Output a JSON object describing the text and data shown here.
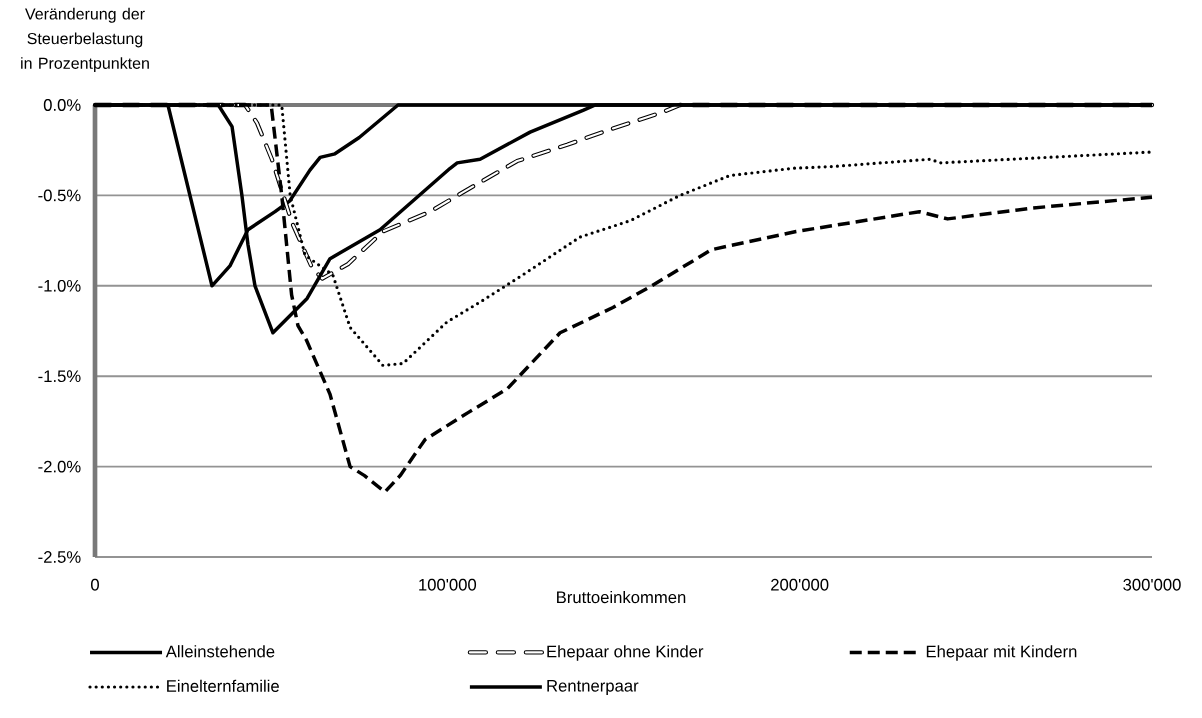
{
  "chart_data": {
    "type": "line",
    "ylabel": "Veränderung der Steuerbelastung in Prozentpunkten",
    "xlabel": "Bruttoeinkommen",
    "xlim": [
      0,
      300000
    ],
    "xticks": [
      0,
      {
        "value": 100000,
        "label": "100'000"
      },
      {
        "value": 200000,
        "label": "200'000"
      },
      {
        "value": 300000,
        "label": "300'000"
      }
    ],
    "ylim": [
      -2.5,
      0
    ],
    "yticks": [
      {
        "value": -2.5,
        "label": "-2.5%"
      },
      {
        "value": -2.0,
        "label": "-2.0%"
      },
      {
        "value": -1.5,
        "label": "-1.5%"
      },
      {
        "value": -1.0,
        "label": "-1.0%"
      },
      {
        "value": -0.5,
        "label": "-0.5%"
      },
      {
        "value": 0,
        "label": "0.0%"
      }
    ],
    "grid": "y",
    "legend": "bottom",
    "marker": "none",
    "series": [
      {
        "name": "Alleinstehende",
        "color": "#000000",
        "line_style": "solid",
        "x": [
          0,
          20700,
          33200,
          38300,
          43400,
          51100,
          55300,
          61000,
          63900,
          68100,
          75000,
          86000,
          300000
        ],
        "values": [
          0,
          0,
          -1.0,
          -0.89,
          -0.69,
          -0.59,
          -0.53,
          -0.36,
          -0.29,
          -0.27,
          -0.18,
          0,
          0
        ]
      },
      {
        "name": "Ehepaar ohne Kinder",
        "color": "#000000",
        "line_style": "double dashed",
        "x": [
          0,
          42600,
          46000,
          50200,
          55900,
          61600,
          64500,
          71800,
          81700,
          95100,
          107300,
          119800,
          134000,
          147000,
          161000,
          166000,
          300000
        ],
        "values": [
          0,
          0,
          -0.1,
          -0.3,
          -0.65,
          -0.9,
          -0.96,
          -0.88,
          -0.7,
          -0.59,
          -0.45,
          -0.31,
          -0.22,
          -0.13,
          -0.04,
          0,
          0
        ]
      },
      {
        "name": "Ehepaar mit Kindern",
        "color": "#000000",
        "line_style": "dashed",
        "x": [
          0,
          50000,
          53000,
          55800,
          57600,
          60000,
          66700,
          72400,
          76500,
          82300,
          86600,
          93700,
          106000,
          117000,
          132000,
          147000,
          158000,
          175000,
          199000,
          234000,
          242000,
          266000,
          300000
        ],
        "values": [
          0,
          0,
          -0.5,
          -1.05,
          -1.22,
          -1.3,
          -1.6,
          -2.0,
          -2.05,
          -2.14,
          -2.05,
          -1.85,
          -1.7,
          -1.57,
          -1.26,
          -1.12,
          -1.0,
          -0.8,
          -0.7,
          -0.59,
          -0.63,
          -0.57,
          -0.51
        ]
      },
      {
        "name": "Einelternfamilie",
        "color": "#000000",
        "line_style": "dotted",
        "x": [
          0,
          53000,
          55400,
          59600,
          67500,
          72400,
          81700,
          87400,
          99900,
          109300,
          120600,
          137700,
          151900,
          166000,
          180200,
          198100,
          209500,
          237000,
          240000,
          300000
        ],
        "values": [
          0,
          0,
          -0.5,
          -0.83,
          -0.94,
          -1.23,
          -1.44,
          -1.43,
          -1.2,
          -1.09,
          -0.95,
          -0.73,
          -0.64,
          -0.5,
          -0.39,
          -0.35,
          -0.34,
          -0.3,
          -0.32,
          -0.26
        ]
      },
      {
        "name": "Rentnerpaar",
        "color": "#000000",
        "line_style": "solid",
        "x": [
          0,
          35000,
          38900,
          41700,
          43400,
          45400,
          50500,
          60200,
          66700,
          80900,
          100800,
          102800,
          109300,
          123500,
          138500,
          142000,
          300000
        ],
        "values": [
          0,
          0,
          -0.12,
          -0.5,
          -0.77,
          -1.0,
          -1.26,
          -1.07,
          -0.85,
          -0.69,
          -0.35,
          -0.32,
          -0.3,
          -0.15,
          -0.03,
          0,
          0
        ]
      }
    ]
  }
}
